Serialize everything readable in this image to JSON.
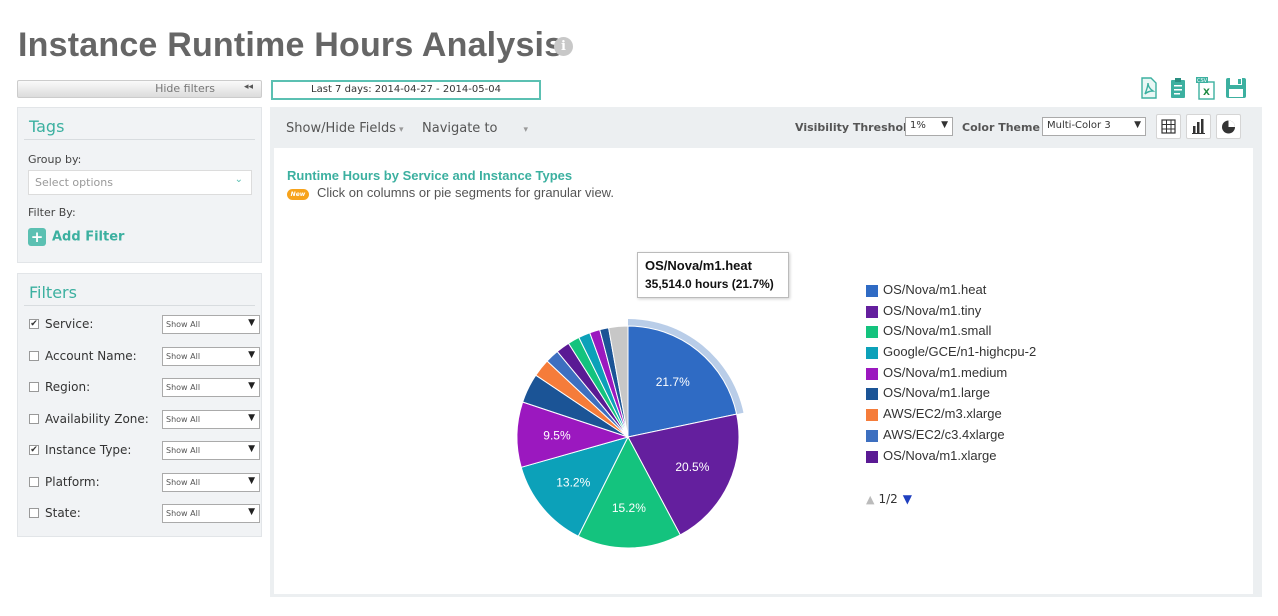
{
  "page": {
    "title": "Instance Runtime Hours Analysis",
    "info_icon": "i"
  },
  "filters_bar": {
    "hide_label": "Hide filters",
    "hide_arrow": "◂◂",
    "date_range": "Last 7 days:  2014-04-27 - 2014-05-04"
  },
  "export_icons": [
    "pdf-icon",
    "clipboard-icon",
    "csv-excel-icon",
    "save-icon"
  ],
  "tags_panel": {
    "title": "Tags",
    "group_by_label": "Group by:",
    "select_placeholder": "Select options",
    "filter_by_label": "Filter By:",
    "add_filter_label": "Add Filter"
  },
  "filters_panel": {
    "title": "Filters",
    "rows": [
      {
        "label": "Service:",
        "checked": true,
        "value": "Show All"
      },
      {
        "label": "Account Name:",
        "checked": false,
        "value": "Show All"
      },
      {
        "label": "Region:",
        "checked": false,
        "value": "Show All"
      },
      {
        "label": "Availability Zone:",
        "checked": false,
        "value": "Show All"
      },
      {
        "label": "Instance Type:",
        "checked": true,
        "value": "Show All"
      },
      {
        "label": "Platform:",
        "checked": false,
        "value": "Show All"
      },
      {
        "label": "State:",
        "checked": false,
        "value": "Show All"
      }
    ]
  },
  "toolbar": {
    "show_hide_fields": "Show/Hide Fields",
    "navigate_to": "Navigate to",
    "visibility_threshold_label": "Visibility Threshold",
    "visibility_threshold_value": "1%",
    "color_theme_label": "Color Theme",
    "color_theme_value": "Multi-Color 3",
    "view_buttons": [
      "table-view-icon",
      "bar-chart-icon",
      "pie-chart-icon"
    ]
  },
  "chart_header": {
    "title": "Runtime Hours by Service and Instance Types",
    "new_badge": "New",
    "subtitle": "Click on columns or pie segments for granular view."
  },
  "tooltip": {
    "title": "OS/Nova/m1.heat",
    "value": "35,514.0 hours (21.7%)"
  },
  "pager": {
    "text": "1/2"
  },
  "colors": {
    "accent": "#3cb0a0",
    "heat": "#2f6bc4",
    "tiny": "#641f9e",
    "small": "#14c37e",
    "gce": "#0ca1b9",
    "medium": "#9b18bf",
    "large": "#1b5496",
    "m3xlarge": "#f57c3a",
    "c34xlarge": "#3d6fc0",
    "m1xlarge": "#5a1a94",
    "gray": "#c7c7c7"
  },
  "chart_data": {
    "type": "pie",
    "title": "Runtime Hours by Service and Instance Types",
    "slices": [
      {
        "name": "OS/Nova/m1.heat",
        "value": 21.7,
        "label": "21.7%",
        "color": "#2f6bc4"
      },
      {
        "name": "OS/Nova/m1.tiny",
        "value": 20.5,
        "label": "20.5%",
        "color": "#641f9e"
      },
      {
        "name": "OS/Nova/m1.small",
        "value": 15.2,
        "label": "15.2%",
        "color": "#14c37e"
      },
      {
        "name": "Google/GCE/n1-highcpu-2",
        "value": 13.2,
        "label": "13.2%",
        "color": "#0ca1b9"
      },
      {
        "name": "OS/Nova/m1.medium",
        "value": 9.5,
        "label": "9.5%",
        "color": "#9b18bf"
      },
      {
        "name": "OS/Nova/m1.large",
        "value": 4.3,
        "label": "",
        "color": "#1b5496"
      },
      {
        "name": "AWS/EC2/m3.xlarge",
        "value": 2.6,
        "label": "",
        "color": "#f57c3a"
      },
      {
        "name": "AWS/EC2/c3.4xlarge",
        "value": 2.0,
        "label": "",
        "color": "#3d6fc0"
      },
      {
        "name": "OS/Nova/m1.xlarge",
        "value": 2.0,
        "label": "",
        "color": "#5a1a94"
      },
      {
        "name": "",
        "value": 1.7,
        "label": "",
        "color": "#14c37e"
      },
      {
        "name": "",
        "value": 1.7,
        "label": "",
        "color": "#0ca1b9"
      },
      {
        "name": "",
        "value": 1.5,
        "label": "",
        "color": "#9b18bf"
      },
      {
        "name": "",
        "value": 1.3,
        "label": "",
        "color": "#1b5496"
      },
      {
        "name": "",
        "value": 2.8,
        "label": "",
        "color": "#c7c7c7"
      }
    ],
    "legend": [
      {
        "name": "OS/Nova/m1.heat",
        "color": "#2f6bc4"
      },
      {
        "name": "OS/Nova/m1.tiny",
        "color": "#641f9e"
      },
      {
        "name": "OS/Nova/m1.small",
        "color": "#14c37e"
      },
      {
        "name": "Google/GCE/n1-highcpu-2",
        "color": "#0ca1b9"
      },
      {
        "name": "OS/Nova/m1.medium",
        "color": "#9b18bf"
      },
      {
        "name": "OS/Nova/m1.large",
        "color": "#1b5496"
      },
      {
        "name": "AWS/EC2/m3.xlarge",
        "color": "#f57c3a"
      },
      {
        "name": "AWS/EC2/c3.4xlarge",
        "color": "#3d6fc0"
      },
      {
        "name": "OS/Nova/m1.xlarge",
        "color": "#5a1a94"
      }
    ],
    "legend_placement": "right",
    "highlighted_slice": "OS/Nova/m1.heat"
  }
}
